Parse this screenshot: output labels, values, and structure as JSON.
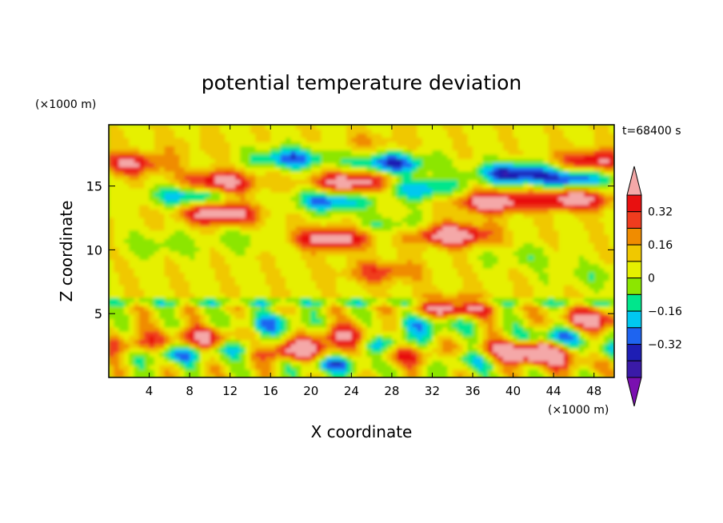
{
  "chart_data": {
    "type": "heatmap",
    "title": "potential temperature deviation",
    "xlabel": "X coordinate",
    "ylabel": "Z coordinate",
    "x_unit": "(×1000 m)",
    "y_unit": "(×1000 m)",
    "time_label": "t=68400 s",
    "xlim": [
      0,
      50
    ],
    "ylim": [
      0,
      19.8
    ],
    "x_ticks": [
      4,
      8,
      12,
      16,
      20,
      24,
      28,
      32,
      36,
      40,
      44,
      48
    ],
    "y_ticks": [
      5,
      10,
      15
    ],
    "colorbar": {
      "levels": [
        -0.48,
        -0.4,
        -0.32,
        -0.24,
        -0.16,
        -0.08,
        0,
        0.08,
        0.16,
        0.24,
        0.32,
        0.4
      ],
      "labeled_ticks": [
        0.32,
        0.16,
        0,
        -0.16,
        -0.32
      ],
      "colors": [
        "#7a10b0",
        "#3a1aa8",
        "#1e1eb4",
        "#1e64f0",
        "#00c8f0",
        "#00e68c",
        "#8ce600",
        "#e6f000",
        "#f0c800",
        "#f08c00",
        "#f03c1e",
        "#e81010",
        "#f4a8a8"
      ],
      "extend": "both"
    },
    "features": [
      {
        "x": 18,
        "z": 17.2,
        "value": -0.35
      },
      {
        "x": 28,
        "z": 16.8,
        "value": -0.4
      },
      {
        "x": 40,
        "z": 16.0,
        "value": -0.45
      },
      {
        "x": 46,
        "z": 15.6,
        "value": -0.38
      },
      {
        "x": 22,
        "z": 13.9,
        "value": -0.35
      },
      {
        "x": 31,
        "z": 14.8,
        "value": -0.3
      },
      {
        "x": 8,
        "z": 14.3,
        "value": -0.32
      },
      {
        "x": 24,
        "z": 15.3,
        "value": 0.48
      },
      {
        "x": 11,
        "z": 15.3,
        "value": 0.45
      },
      {
        "x": 38,
        "z": 13.8,
        "value": 0.48
      },
      {
        "x": 11,
        "z": 12.9,
        "value": 0.48
      },
      {
        "x": 34,
        "z": 11.2,
        "value": 0.5
      },
      {
        "x": 22,
        "z": 10.9,
        "value": 0.45
      },
      {
        "x": 46,
        "z": 14.0,
        "value": 0.45
      },
      {
        "x": 2,
        "z": 16.8,
        "value": 0.35
      },
      {
        "x": 48,
        "z": 17.0,
        "value": 0.38
      },
      {
        "x": 26,
        "z": 18.5,
        "value": 0.1
      },
      {
        "x": 8,
        "z": 18.2,
        "value": 0.06
      },
      {
        "x": 27,
        "z": 8.3,
        "value": 0.24
      },
      {
        "x": 5,
        "z": 10.4,
        "value": -0.12
      },
      {
        "x": 14,
        "z": 10.8,
        "value": -0.1
      },
      {
        "x": 28,
        "z": 12.0,
        "value": -0.14
      },
      {
        "x": 41,
        "z": 9.5,
        "value": -0.1
      },
      {
        "x": 48,
        "z": 8.0,
        "value": -0.1
      },
      {
        "x": 10,
        "z": 3.0,
        "value": 0.45
      },
      {
        "x": 24,
        "z": 3.2,
        "value": 0.4
      },
      {
        "x": 34,
        "z": 5.5,
        "value": 0.45
      },
      {
        "x": 42,
        "z": 2.0,
        "value": 0.45
      },
      {
        "x": 48,
        "z": 4.5,
        "value": 0.4
      },
      {
        "x": 3,
        "z": 2.5,
        "value": 0.3
      },
      {
        "x": 17,
        "z": 2.2,
        "value": 0.3
      },
      {
        "x": 20,
        "z": 2.0,
        "value": 0.3
      },
      {
        "x": 30,
        "z": 1.8,
        "value": 0.28
      },
      {
        "x": 39,
        "z": 2.0,
        "value": 0.3
      },
      {
        "x": 46,
        "z": 1.5,
        "value": 0.25
      },
      {
        "x": 6,
        "z": 2.0,
        "value": -0.35
      },
      {
        "x": 13,
        "z": 2.5,
        "value": -0.36
      },
      {
        "x": 22,
        "z": 1.2,
        "value": -0.36
      },
      {
        "x": 27,
        "z": 2.8,
        "value": -0.35
      },
      {
        "x": 36,
        "z": 1.5,
        "value": -0.3
      },
      {
        "x": 44,
        "z": 3.2,
        "value": -0.3
      },
      {
        "x": 49,
        "z": 2.0,
        "value": -0.28
      },
      {
        "x": 16,
        "z": 4.2,
        "value": -0.25
      },
      {
        "x": 32,
        "z": 4.2,
        "value": -0.25
      }
    ]
  }
}
